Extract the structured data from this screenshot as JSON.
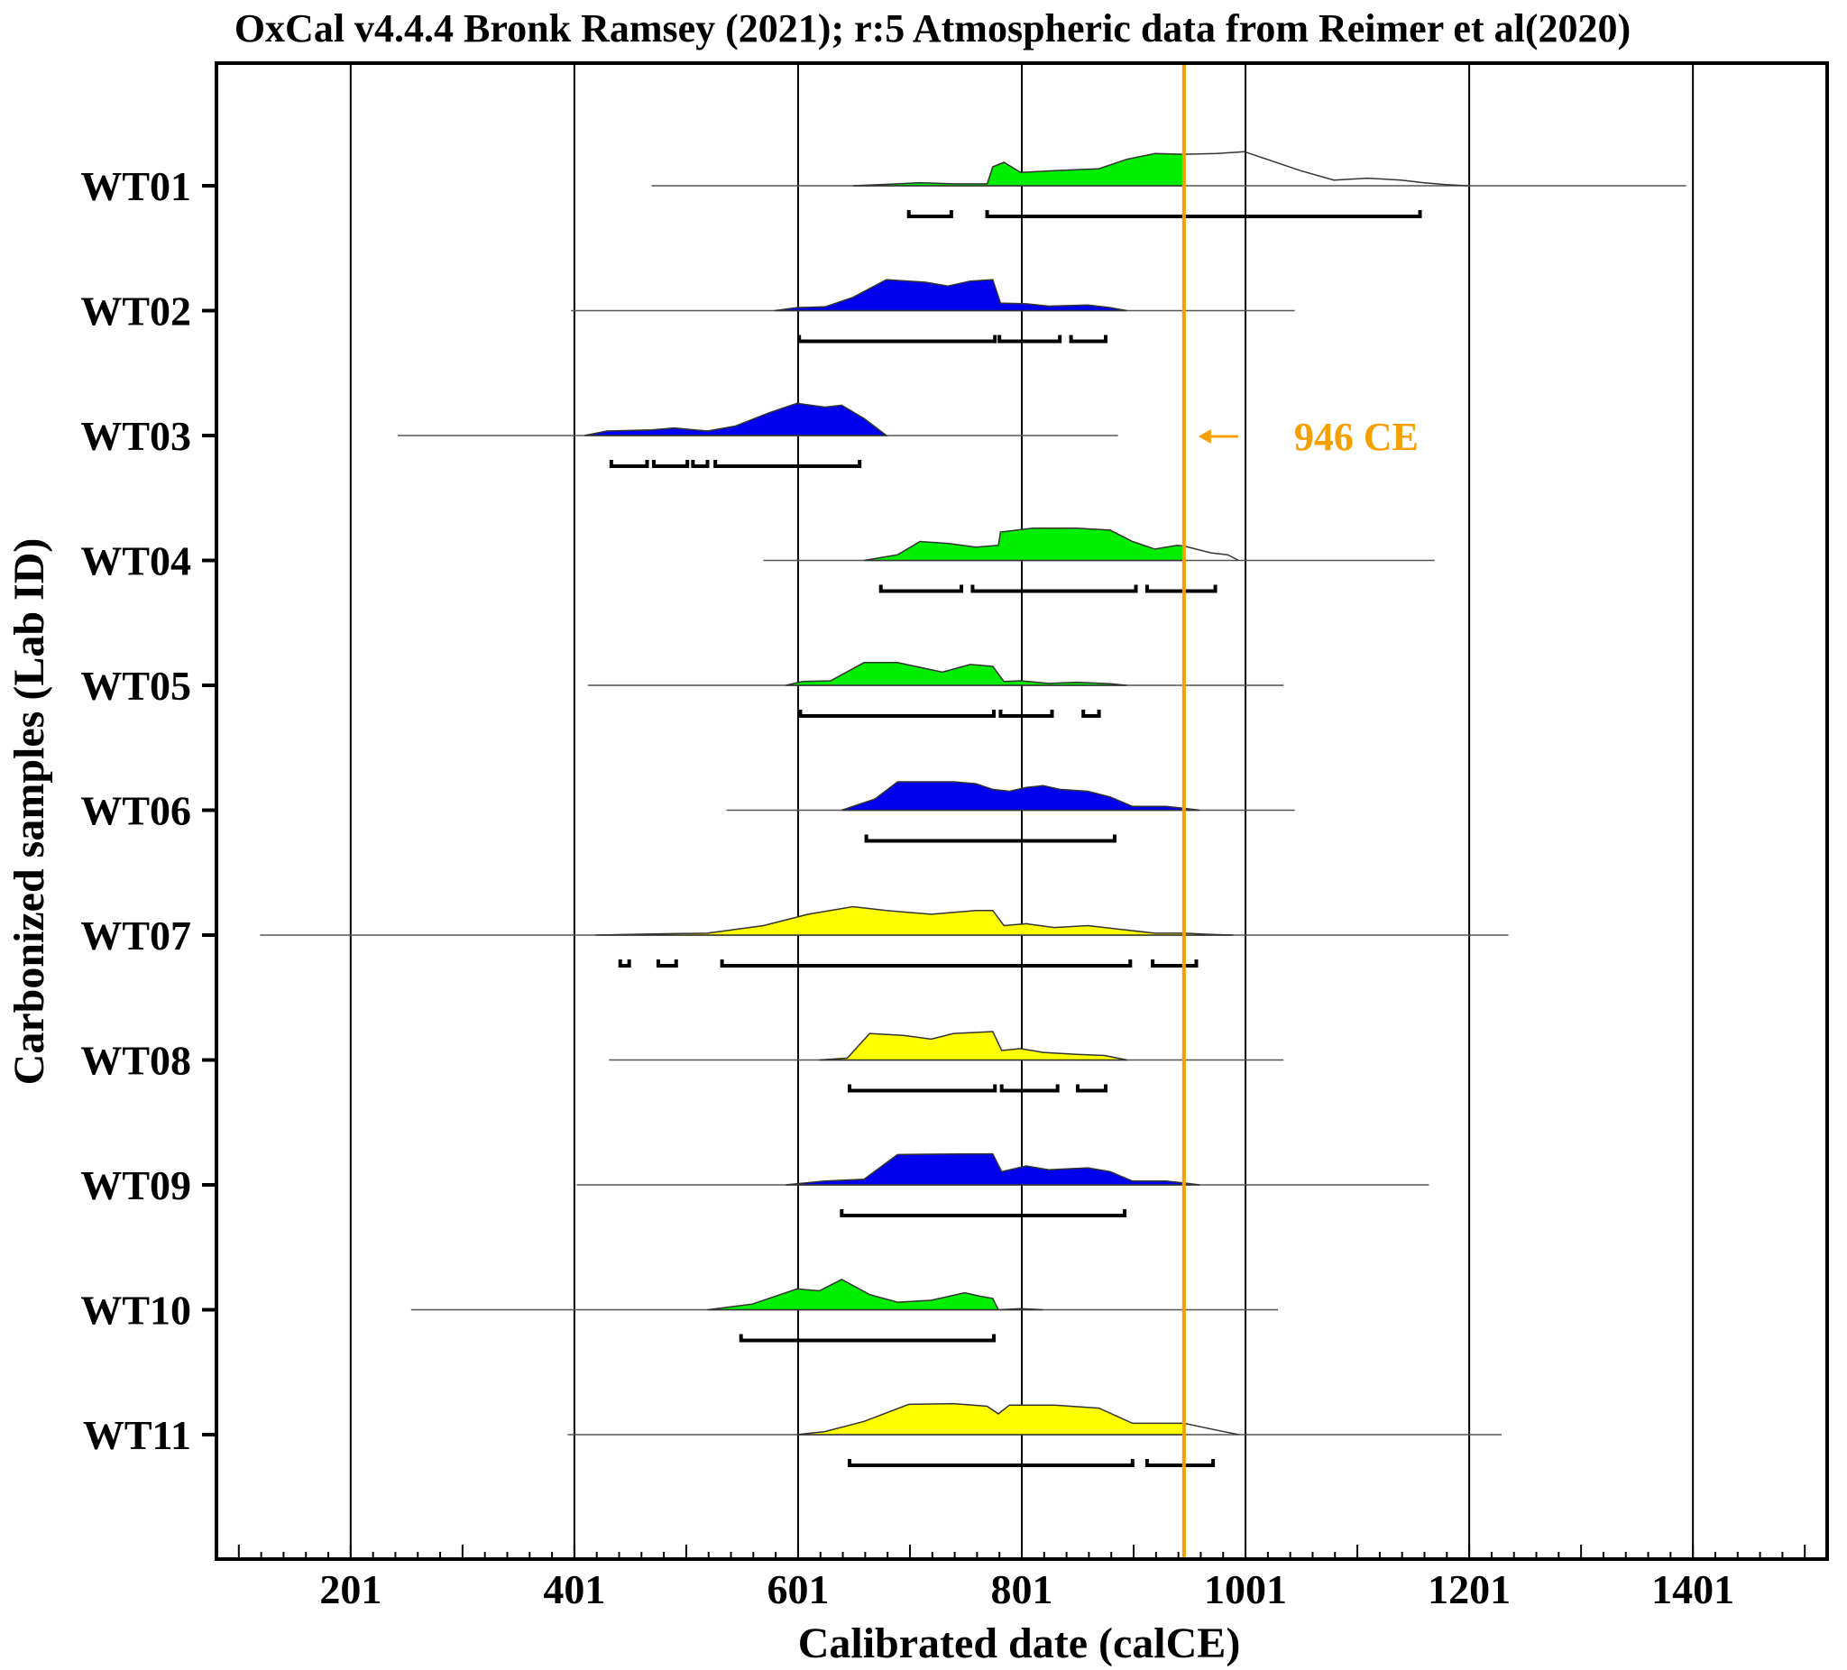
{
  "chart_data": {
    "type": "area",
    "title": "OxCal v4.4.4 Bronk Ramsey (2021); r:5 Atmospheric data from Reimer et al(2020)",
    "xlabel": "Calibrated date (calCE)",
    "ylabel": "Carbonized samples (Lab ID)",
    "xlim": [
      81,
      1521
    ],
    "x_ticks": [
      201,
      401,
      601,
      801,
      1001,
      1201,
      1401
    ],
    "x_tick_labels": [
      "201",
      "401",
      "601",
      "801",
      "1001",
      "1201",
      "1401"
    ],
    "grid": "vertical",
    "annotation": {
      "label": "946 CE",
      "x": 946,
      "color": "#F5A000"
    },
    "fill_colors": {
      "green": "#00EE00",
      "blue": "#0000EE",
      "yellow": "#FFFF00"
    },
    "series": [
      {
        "name": "WT01",
        "color": "green",
        "clip_above": 946,
        "baseline": [
          470,
          1395
        ],
        "density": [
          [
            650,
            0
          ],
          [
            690,
            0.05
          ],
          [
            710,
            0.08
          ],
          [
            740,
            0.05
          ],
          [
            770,
            0.05
          ],
          [
            775,
            0.5
          ],
          [
            785,
            0.62
          ],
          [
            800,
            0.35
          ],
          [
            830,
            0.4
          ],
          [
            870,
            0.45
          ],
          [
            895,
            0.7
          ],
          [
            920,
            0.85
          ],
          [
            946,
            0.83
          ],
          [
            975,
            0.85
          ],
          [
            1000,
            0.9
          ],
          [
            1020,
            0.7
          ],
          [
            1050,
            0.4
          ],
          [
            1080,
            0.15
          ],
          [
            1110,
            0.2
          ],
          [
            1140,
            0.15
          ],
          [
            1160,
            0.08
          ],
          [
            1180,
            0.03
          ],
          [
            1200,
            0
          ]
        ],
        "ranges": [
          [
            700,
            738
          ],
          [
            770,
            1157
          ]
        ]
      },
      {
        "name": "WT02",
        "color": "blue",
        "clip_above": null,
        "baseline": [
          398,
          1045
        ],
        "density": [
          [
            580,
            0
          ],
          [
            600,
            0.08
          ],
          [
            625,
            0.1
          ],
          [
            650,
            0.35
          ],
          [
            680,
            0.82
          ],
          [
            715,
            0.75
          ],
          [
            735,
            0.65
          ],
          [
            755,
            0.78
          ],
          [
            775,
            0.82
          ],
          [
            782,
            0.2
          ],
          [
            805,
            0.18
          ],
          [
            825,
            0.12
          ],
          [
            860,
            0.15
          ],
          [
            880,
            0.08
          ],
          [
            895,
            0
          ]
        ],
        "ranges": [
          [
            602,
            777
          ],
          [
            781,
            835
          ],
          [
            845,
            876
          ]
        ]
      },
      {
        "name": "WT03",
        "color": "blue",
        "clip_above": null,
        "baseline": [
          243,
          887
        ],
        "density": [
          [
            410,
            0
          ],
          [
            430,
            0.12
          ],
          [
            470,
            0.15
          ],
          [
            490,
            0.2
          ],
          [
            520,
            0.12
          ],
          [
            545,
            0.25
          ],
          [
            575,
            0.6
          ],
          [
            600,
            0.85
          ],
          [
            625,
            0.75
          ],
          [
            640,
            0.8
          ],
          [
            660,
            0.45
          ],
          [
            680,
            0
          ]
        ],
        "ranges": [
          [
            434,
            466
          ],
          [
            472,
            502
          ],
          [
            507,
            520
          ],
          [
            527,
            656
          ]
        ]
      },
      {
        "name": "WT04",
        "color": "green",
        "clip_above": 946,
        "baseline": [
          570,
          1170
        ],
        "density": [
          [
            660,
            0
          ],
          [
            690,
            0.15
          ],
          [
            710,
            0.5
          ],
          [
            735,
            0.45
          ],
          [
            760,
            0.35
          ],
          [
            780,
            0.4
          ],
          [
            782,
            0.75
          ],
          [
            810,
            0.85
          ],
          [
            850,
            0.85
          ],
          [
            880,
            0.8
          ],
          [
            900,
            0.5
          ],
          [
            920,
            0.3
          ],
          [
            940,
            0.4
          ],
          [
            946,
            0.38
          ],
          [
            970,
            0.2
          ],
          [
            985,
            0.15
          ],
          [
            995,
            0
          ]
        ],
        "ranges": [
          [
            675,
            747
          ],
          [
            757,
            903
          ],
          [
            913,
            974
          ]
        ]
      },
      {
        "name": "WT05",
        "color": "green",
        "clip_above": null,
        "baseline": [
          413,
          1035
        ],
        "density": [
          [
            590,
            0
          ],
          [
            605,
            0.1
          ],
          [
            630,
            0.12
          ],
          [
            660,
            0.6
          ],
          [
            690,
            0.6
          ],
          [
            730,
            0.35
          ],
          [
            755,
            0.55
          ],
          [
            775,
            0.5
          ],
          [
            785,
            0.1
          ],
          [
            800,
            0.12
          ],
          [
            825,
            0.05
          ],
          [
            850,
            0.08
          ],
          [
            880,
            0.04
          ],
          [
            895,
            0
          ]
        ],
        "ranges": [
          [
            603,
            776
          ],
          [
            782,
            828
          ],
          [
            856,
            870
          ]
        ]
      },
      {
        "name": "WT06",
        "color": "blue",
        "clip_above": null,
        "baseline": [
          537,
          1045
        ],
        "density": [
          [
            640,
            0
          ],
          [
            670,
            0.3
          ],
          [
            690,
            0.75
          ],
          [
            740,
            0.75
          ],
          [
            760,
            0.7
          ],
          [
            775,
            0.55
          ],
          [
            790,
            0.5
          ],
          [
            805,
            0.6
          ],
          [
            820,
            0.65
          ],
          [
            835,
            0.55
          ],
          [
            860,
            0.5
          ],
          [
            880,
            0.35
          ],
          [
            900,
            0.1
          ],
          [
            930,
            0.1
          ],
          [
            946,
            0.05
          ],
          [
            960,
            0
          ]
        ],
        "ranges": [
          [
            662,
            884
          ]
        ]
      },
      {
        "name": "WT07",
        "color": "yellow",
        "clip_above": null,
        "baseline": [
          120,
          1236
        ],
        "density": [
          [
            420,
            0
          ],
          [
            470,
            0.03
          ],
          [
            520,
            0.05
          ],
          [
            570,
            0.25
          ],
          [
            610,
            0.55
          ],
          [
            650,
            0.75
          ],
          [
            680,
            0.65
          ],
          [
            720,
            0.55
          ],
          [
            760,
            0.65
          ],
          [
            775,
            0.65
          ],
          [
            785,
            0.25
          ],
          [
            805,
            0.3
          ],
          [
            830,
            0.2
          ],
          [
            860,
            0.25
          ],
          [
            890,
            0.15
          ],
          [
            920,
            0.05
          ],
          [
            946,
            0.05
          ],
          [
            970,
            0.02
          ],
          [
            990,
            0
          ]
        ],
        "ranges": [
          [
            442,
            450
          ],
          [
            476,
            492
          ],
          [
            533,
            898
          ],
          [
            918,
            957
          ]
        ]
      },
      {
        "name": "WT08",
        "color": "yellow",
        "clip_above": null,
        "baseline": [
          432,
          1035
        ],
        "density": [
          [
            620,
            0
          ],
          [
            645,
            0.05
          ],
          [
            665,
            0.7
          ],
          [
            695,
            0.65
          ],
          [
            720,
            0.55
          ],
          [
            740,
            0.7
          ],
          [
            775,
            0.75
          ],
          [
            783,
            0.25
          ],
          [
            800,
            0.3
          ],
          [
            820,
            0.2
          ],
          [
            850,
            0.15
          ],
          [
            875,
            0.12
          ],
          [
            895,
            0
          ]
        ],
        "ranges": [
          [
            647,
            777
          ],
          [
            783,
            833
          ],
          [
            851,
            876
          ]
        ]
      },
      {
        "name": "WT09",
        "color": "blue",
        "clip_above": null,
        "baseline": [
          403,
          1165
        ],
        "density": [
          [
            590,
            0
          ],
          [
            625,
            0.1
          ],
          [
            660,
            0.15
          ],
          [
            690,
            0.8
          ],
          [
            750,
            0.82
          ],
          [
            775,
            0.82
          ],
          [
            783,
            0.35
          ],
          [
            805,
            0.5
          ],
          [
            825,
            0.4
          ],
          [
            860,
            0.45
          ],
          [
            880,
            0.35
          ],
          [
            900,
            0.1
          ],
          [
            930,
            0.1
          ],
          [
            946,
            0.05
          ],
          [
            960,
            0
          ]
        ],
        "ranges": [
          [
            640,
            893
          ]
        ]
      },
      {
        "name": "WT10",
        "color": "green",
        "clip_above": null,
        "baseline": [
          255,
          1030
        ],
        "density": [
          [
            520,
            0
          ],
          [
            560,
            0.15
          ],
          [
            600,
            0.55
          ],
          [
            620,
            0.5
          ],
          [
            640,
            0.8
          ],
          [
            665,
            0.4
          ],
          [
            690,
            0.2
          ],
          [
            720,
            0.25
          ],
          [
            750,
            0.45
          ],
          [
            765,
            0.35
          ],
          [
            775,
            0.3
          ],
          [
            780,
            0
          ],
          [
            800,
            0.03
          ],
          [
            820,
            0
          ]
        ],
        "ranges": [
          [
            550,
            776
          ]
        ]
      },
      {
        "name": "WT11",
        "color": "yellow",
        "clip_above": 946,
        "baseline": [
          395,
          1230
        ],
        "density": [
          [
            600,
            0
          ],
          [
            625,
            0.08
          ],
          [
            660,
            0.35
          ],
          [
            700,
            0.8
          ],
          [
            740,
            0.82
          ],
          [
            770,
            0.75
          ],
          [
            780,
            0.55
          ],
          [
            790,
            0.78
          ],
          [
            830,
            0.78
          ],
          [
            870,
            0.7
          ],
          [
            900,
            0.3
          ],
          [
            930,
            0.3
          ],
          [
            946,
            0.3
          ],
          [
            970,
            0.15
          ],
          [
            995,
            0
          ]
        ],
        "ranges": [
          [
            647,
            900
          ],
          [
            913,
            972
          ]
        ]
      }
    ]
  }
}
